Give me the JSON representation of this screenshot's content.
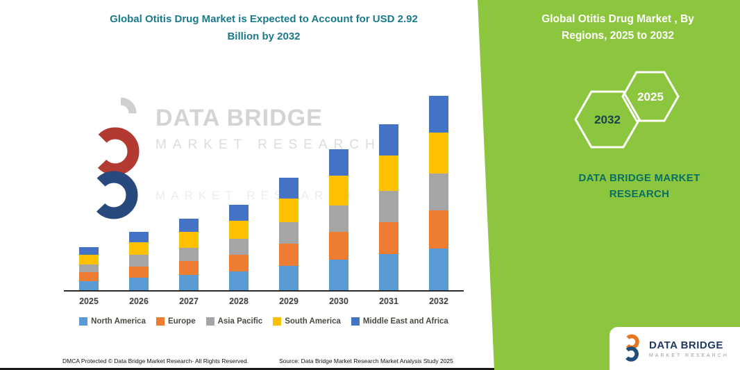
{
  "left_panel": {
    "title_line1": "Global Otitis Drug Market is Expected to Account for USD 2.92",
    "title_line2": "Billion by 2032",
    "title_color": "#1A7A8A",
    "footer_left": "DMCA Protected © Data Bridge Market Research- All Rights Reserved.",
    "footer_source": "Source: Data Bridge Market Research Market Analysis Study 2025"
  },
  "watermark": {
    "icon": "data-bridge-logo-watermark",
    "line1": "DATA BRIDGE",
    "line2": "MARKET RESEARCH",
    "line3": "MARKET RESEARCH"
  },
  "right_panel": {
    "background_color": "#8CC63E",
    "brand_teal": "#0A6F63",
    "title_line1": "Global Otitis Drug Market , By",
    "title_line2": "Regions, 2025 to 2032",
    "hexagons": [
      {
        "label": "2032"
      },
      {
        "label": "2025"
      }
    ],
    "brand_line1": "DATA BRIDGE MARKET",
    "brand_line2": "RESEARCH",
    "logo_box": {
      "icon": "data-bridge-logo",
      "name": "DATA BRIDGE",
      "subtitle": "MARKET RESEARCH"
    }
  },
  "chart_data": {
    "type": "bar",
    "stacked": true,
    "title": "Global Otitis Drug Market is Expected to Account for USD 2.92 Billion by 2032",
    "unit": "USD Billion",
    "xlabel": "",
    "ylabel": "",
    "grid": false,
    "legend_position": "bottom",
    "categories": [
      "2025",
      "2026",
      "2027",
      "2028",
      "2029",
      "2030",
      "2031",
      "2032"
    ],
    "series": [
      {
        "name": "North America",
        "color": "#5B9BD5",
        "values": [
          0.14,
          0.19,
          0.23,
          0.28,
          0.37,
          0.46,
          0.54,
          0.63
        ]
      },
      {
        "name": "Europe",
        "color": "#ED7D31",
        "values": [
          0.13,
          0.17,
          0.21,
          0.25,
          0.33,
          0.41,
          0.48,
          0.57
        ]
      },
      {
        "name": "Asia Pacific",
        "color": "#A5A5A5",
        "values": [
          0.12,
          0.17,
          0.2,
          0.24,
          0.32,
          0.4,
          0.47,
          0.55
        ]
      },
      {
        "name": "South America",
        "color": "#FFC000",
        "values": [
          0.14,
          0.19,
          0.23,
          0.27,
          0.36,
          0.45,
          0.53,
          0.62
        ]
      },
      {
        "name": "Middle East and Africa",
        "color": "#4472C4",
        "values": [
          0.12,
          0.16,
          0.2,
          0.24,
          0.31,
          0.39,
          0.47,
          0.55
        ]
      }
    ],
    "totals": [
      0.65,
      0.88,
      1.07,
      1.28,
      1.69,
      2.11,
      2.49,
      2.92
    ],
    "ylim": [
      0,
      3.05
    ]
  }
}
